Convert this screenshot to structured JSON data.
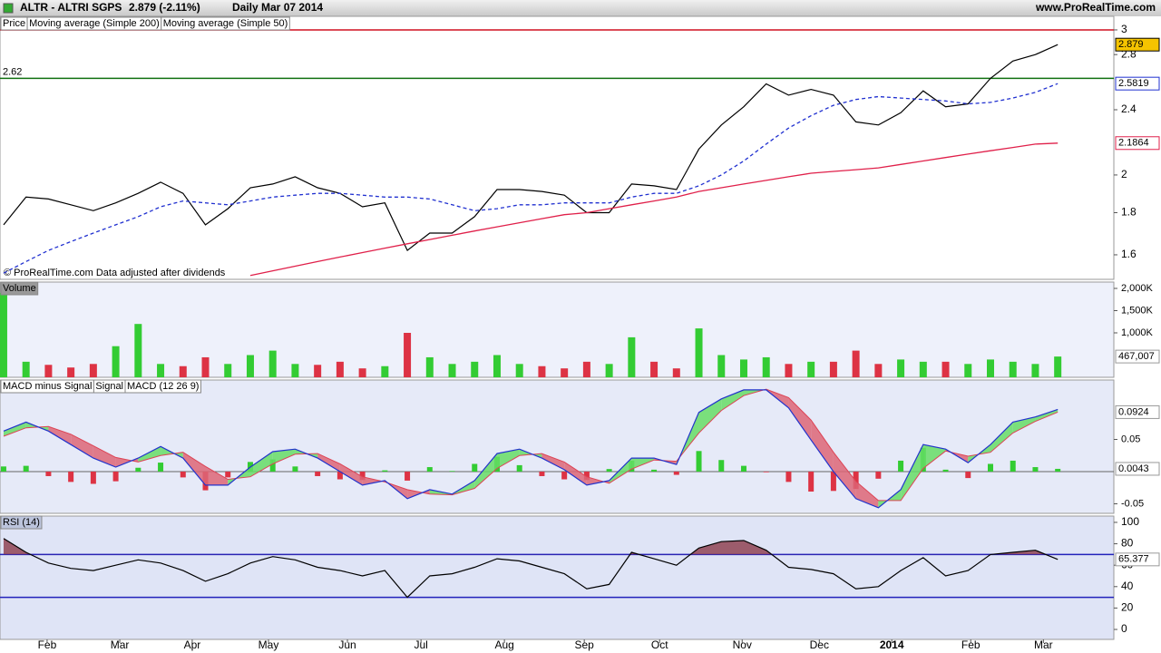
{
  "header": {
    "symbol": "ALTR - ALTRI SGPS",
    "quote": "2.879 (-2.11%)",
    "period": "Daily  Mar 07 2014",
    "site": "www.ProRealTime.com"
  },
  "chart_data": [
    {
      "type": "line",
      "log_scale": true,
      "x": [
        0,
        1,
        2,
        3,
        4,
        5,
        6,
        7,
        8,
        9,
        10,
        11,
        12,
        13,
        14,
        15,
        16,
        17,
        18,
        19,
        20,
        21,
        22,
        23,
        24,
        25,
        26,
        27,
        28,
        29,
        30,
        31,
        32,
        33,
        34,
        35,
        36,
        37,
        38,
        39,
        40,
        41,
        42,
        43,
        44,
        45,
        46,
        47
      ],
      "xlim": [
        -0.16,
        49.5
      ],
      "ylim": [
        1.494,
        3.116
      ],
      "yticks": [
        1.6,
        1.8,
        2,
        2.4,
        2.8,
        3
      ],
      "footnote": "© ProRealTime.com  Data adjusted after dividends",
      "levels": [
        {
          "value": 3,
          "color": "#d01020"
        },
        {
          "value": 2.62,
          "color": "#107010",
          "labeled": true
        }
      ],
      "series": [
        {
          "name": "Price",
          "color": "#000000",
          "box_color": "#f5c400",
          "values": [
            1.74,
            1.88,
            1.87,
            1.84,
            1.81,
            1.85,
            1.9,
            1.96,
            1.9,
            1.74,
            1.82,
            1.93,
            1.95,
            1.99,
            1.93,
            1.9,
            1.83,
            1.85,
            1.62,
            1.7,
            1.7,
            1.78,
            1.92,
            1.92,
            1.91,
            1.89,
            1.8,
            1.8,
            1.95,
            1.94,
            1.92,
            2.15,
            2.3,
            2.42,
            2.58,
            2.5,
            2.54,
            2.5,
            2.32,
            2.3,
            2.38,
            2.53,
            2.42,
            2.44,
            2.62,
            2.75,
            2.8,
            2.879
          ]
        },
        {
          "name": "Moving average (Simple 200)",
          "color": "#e0204a",
          "values": [
            null,
            null,
            null,
            null,
            null,
            null,
            null,
            null,
            null,
            null,
            null,
            1.51,
            1.53,
            1.55,
            1.57,
            1.59,
            1.61,
            1.63,
            1.65,
            1.67,
            1.69,
            1.71,
            1.73,
            1.75,
            1.77,
            1.79,
            1.8,
            1.82,
            1.84,
            1.86,
            1.88,
            1.91,
            1.93,
            1.95,
            1.97,
            1.99,
            2.01,
            2.02,
            2.03,
            2.04,
            2.06,
            2.08,
            2.1,
            2.12,
            2.14,
            2.16,
            2.18,
            2.1864
          ]
        },
        {
          "name": "Moving average (Simple 50)",
          "color": "#2030d0",
          "dash": true,
          "values": [
            1.52,
            1.57,
            1.62,
            1.66,
            1.7,
            1.74,
            1.78,
            1.83,
            1.86,
            1.85,
            1.84,
            1.86,
            1.88,
            1.89,
            1.9,
            1.9,
            1.89,
            1.88,
            1.88,
            1.87,
            1.84,
            1.81,
            1.82,
            1.84,
            1.84,
            1.85,
            1.85,
            1.85,
            1.88,
            1.9,
            1.9,
            1.94,
            2.0,
            2.08,
            2.18,
            2.28,
            2.36,
            2.43,
            2.47,
            2.49,
            2.48,
            2.47,
            2.46,
            2.44,
            2.45,
            2.48,
            2.52,
            2.5819
          ]
        }
      ]
    },
    {
      "type": "bar",
      "title": "Volume",
      "up_color": "#33cc33",
      "down_color": "#dd3344",
      "ylim": [
        0,
        2143000
      ],
      "yticks": [
        {
          "value": 1000000,
          "label": "1,000K"
        },
        {
          "value": 1500000,
          "label": "1,500K"
        },
        {
          "value": 2000000,
          "label": "2,000K"
        }
      ],
      "values": [
        1900000,
        350000,
        280000,
        220000,
        300000,
        700000,
        1200000,
        300000,
        250000,
        450000,
        300000,
        500000,
        600000,
        300000,
        280000,
        350000,
        200000,
        250000,
        1000000,
        450000,
        300000,
        350000,
        500000,
        300000,
        250000,
        200000,
        350000,
        300000,
        900000,
        350000,
        200000,
        1100000,
        500000,
        400000,
        450000,
        300000,
        350000,
        350000,
        600000,
        300000,
        400000,
        350000,
        350000,
        300000,
        400000,
        350000,
        300000,
        467007
      ],
      "last_label": "467,007"
    },
    {
      "type": "macd",
      "up_color": "#33cc33",
      "down_color": "#dd3344",
      "ylim": [
        -0.0648,
        0.1423
      ],
      "yticks": [
        -0.05,
        0.05
      ],
      "series": [
        {
          "name": "MACD minus Signal",
          "color": "#33aa33",
          "values": [
            0.008,
            0.009,
            -0.007,
            -0.016,
            -0.019,
            -0.015,
            0.006,
            0.014,
            -0.009,
            -0.029,
            -0.009,
            0.015,
            0.019,
            0.008,
            -0.007,
            -0.012,
            -0.013,
            0.002,
            -0.014,
            0.007,
            0.001,
            0.012,
            0.023,
            0.01,
            -0.007,
            -0.012,
            -0.013,
            0.004,
            0.017,
            0.003,
            -0.005,
            0.032,
            0.018,
            0.009,
            -0.001,
            -0.016,
            -0.031,
            -0.03,
            -0.027,
            -0.011,
            0.017,
            0.037,
            0.003,
            -0.01,
            0.012,
            0.017,
            0.007,
            0.0043
          ]
        },
        {
          "name": "Signal",
          "color": "#dd4455",
          "values": [
            0.055,
            0.068,
            0.07,
            0.058,
            0.04,
            0.022,
            0.015,
            0.025,
            0.03,
            0.008,
            -0.012,
            -0.008,
            0.012,
            0.027,
            0.028,
            0.012,
            -0.008,
            -0.016,
            -0.028,
            -0.035,
            -0.036,
            -0.026,
            0.005,
            0.025,
            0.028,
            0.015,
            -0.008,
            -0.018,
            0.004,
            0.018,
            0.016,
            0.06,
            0.095,
            0.118,
            0.128,
            0.115,
            0.08,
            0.03,
            -0.015,
            -0.045,
            -0.045,
            0.005,
            0.032,
            0.024,
            0.03,
            0.06,
            0.078,
            0.0924
          ]
        },
        {
          "name": "MACD (12 26 9)",
          "color": "#2233cc",
          "values": [
            0.063,
            0.077,
            0.063,
            0.042,
            0.021,
            0.007,
            0.021,
            0.039,
            0.021,
            -0.021,
            -0.021,
            0.007,
            0.031,
            0.035,
            0.021,
            0,
            -0.021,
            -0.014,
            -0.042,
            -0.028,
            -0.035,
            -0.014,
            0.028,
            0.035,
            0.021,
            0.003,
            -0.021,
            -0.014,
            0.021,
            0.021,
            0.011,
            0.092,
            0.113,
            0.127,
            0.127,
            0.099,
            0.049,
            0,
            -0.042,
            -0.056,
            -0.028,
            0.042,
            0.035,
            0.014,
            0.042,
            0.077,
            0.085,
            0.0967
          ]
        }
      ]
    },
    {
      "type": "line",
      "title": "RSI (14)",
      "color": "#000000",
      "overbought_fill": "#8b3a4a",
      "ylim": [
        -9.3,
        105.9
      ],
      "yticks": [
        0,
        20,
        40,
        60,
        80,
        100
      ],
      "levels": [
        {
          "value": 70,
          "color": "#2222bb"
        },
        {
          "value": 30,
          "color": "#2222bb"
        }
      ],
      "values": [
        85,
        72,
        62,
        57,
        55,
        60,
        65,
        62,
        55,
        45,
        52,
        62,
        68,
        65,
        58,
        55,
        50,
        55,
        30,
        50,
        52,
        58,
        66,
        64,
        58,
        52,
        38,
        42,
        72,
        66,
        60,
        76,
        82,
        83,
        74,
        58,
        56,
        52,
        38,
        40,
        55,
        67,
        50,
        55,
        70,
        72,
        74,
        65.377
      ],
      "xticks": [
        {
          "value": 1.94,
          "label": "Feb"
        },
        {
          "value": 5.18,
          "label": "Mar"
        },
        {
          "value": 8.41,
          "label": "Apr"
        },
        {
          "value": 11.81,
          "label": "May"
        },
        {
          "value": 15.33,
          "label": "Jun"
        },
        {
          "value": 18.61,
          "label": "Jul"
        },
        {
          "value": 22.33,
          "label": "Aug"
        },
        {
          "value": 25.89,
          "label": "Sep"
        },
        {
          "value": 29.25,
          "label": "Oct"
        },
        {
          "value": 32.93,
          "label": "Nov"
        },
        {
          "value": 36.37,
          "label": "Dec"
        },
        {
          "value": 39.6,
          "label": "2014"
        },
        {
          "value": 43.12,
          "label": "Feb"
        },
        {
          "value": 46.36,
          "label": "Mar"
        }
      ]
    }
  ]
}
